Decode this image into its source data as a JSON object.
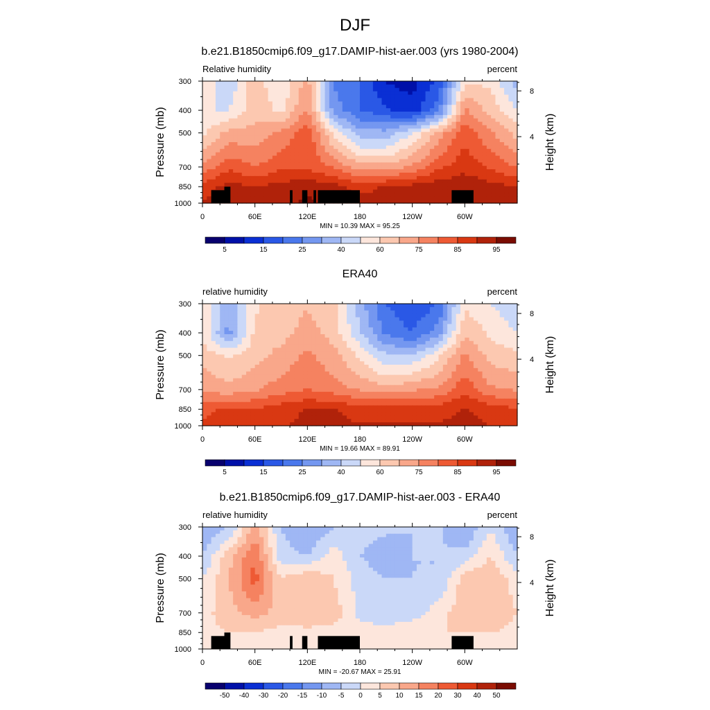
{
  "figure": {
    "title": "DJF"
  },
  "colors": {
    "abs_levels": [
      "5",
      "15",
      "25",
      "40",
      "60",
      "75",
      "85",
      "95"
    ],
    "diff_levels": [
      "-50",
      "-40",
      "-30",
      "-20",
      "-15",
      "-10",
      "-5",
      "0",
      "5",
      "10",
      "15",
      "20",
      "30",
      "40",
      "50"
    ],
    "palette": [
      "#08006e",
      "#0010a8",
      "#0a2fd4",
      "#2a58e6",
      "#4a78ec",
      "#7497f0",
      "#9fb7f4",
      "#cad8f8",
      "#fde6dc",
      "#fcc8b0",
      "#f9a78a",
      "#f58260",
      "#ee5a34",
      "#d93812",
      "#b0220a",
      "#7a0c02"
    ],
    "land": "#000000"
  },
  "panels": [
    {
      "title": "b.e21.B1850cmip6.f09_g17.DAMIP-hist-aer.003 (yrs 1980-2004)",
      "left_label": "Relative humidity",
      "right_label": "percent",
      "ylabel": "Pressure (mb)",
      "y2label": "Height (km)",
      "minmax": "MIN =  10.39  MAX =  95.25",
      "colorbar_labels": [
        "5",
        "15",
        "25",
        "40",
        "60",
        "75",
        "85",
        "95"
      ],
      "show_land": true
    },
    {
      "title": "ERA40",
      "left_label": "relative humidity",
      "right_label": "percent",
      "ylabel": "Pressure (mb)",
      "y2label": "Height (km)",
      "minmax": "MIN =  19.66  MAX =  89.91",
      "colorbar_labels": [
        "5",
        "15",
        "25",
        "40",
        "60",
        "75",
        "85",
        "95"
      ],
      "show_land": false
    },
    {
      "title": "b.e21.B1850cmip6.f09_g17.DAMIP-hist-aer.003 - ERA40",
      "left_label": "relative humidity",
      "right_label": "percent",
      "ylabel": "Pressure (mb)",
      "y2label": "Height (km)",
      "minmax": "MIN = -20.67  MAX =  25.91",
      "colorbar_labels": [
        "-50",
        "-40",
        "-30",
        "-20",
        "-15",
        "-10",
        "-5",
        "0",
        "5",
        "10",
        "15",
        "20",
        "30",
        "40",
        "50"
      ],
      "show_land": true
    }
  ],
  "chart_data": [
    {
      "type": "heatmap",
      "title": "b.e21.B1850cmip6.f09_g17.DAMIP-hist-aer.003 (yrs 1980-2004)",
      "variable": "Relative humidity",
      "units": "percent",
      "x": [
        0,
        30,
        60,
        90,
        120,
        150,
        180,
        210,
        240,
        270,
        300,
        330,
        360
      ],
      "x_ticks": [
        "0",
        "60E",
        "120E",
        "180",
        "120W",
        "60W"
      ],
      "y": [
        300,
        400,
        500,
        700,
        850,
        1000
      ],
      "y_ticks": [
        "300",
        "400",
        "500",
        "700",
        "850",
        "1000"
      ],
      "y2_ticks": [
        "8",
        "4"
      ],
      "z": [
        [
          55,
          45,
          60,
          50,
          65,
          30,
          25,
          12,
          10,
          20,
          55,
          55,
          40
        ],
        [
          50,
          50,
          60,
          55,
          70,
          35,
          25,
          20,
          15,
          30,
          70,
          60,
          50
        ],
        [
          55,
          65,
          65,
          70,
          80,
          55,
          40,
          40,
          50,
          65,
          80,
          70,
          60
        ],
        [
          70,
          80,
          75,
          80,
          80,
          75,
          65,
          65,
          70,
          80,
          85,
          80,
          75
        ],
        [
          85,
          90,
          88,
          90,
          92,
          90,
          85,
          88,
          90,
          92,
          93,
          90,
          88
        ],
        [
          88,
          90,
          90,
          92,
          95,
          92,
          90,
          92,
          93,
          93,
          93,
          92,
          90
        ]
      ],
      "land": [
        [
          10,
          30,
          1000,
          880
        ],
        [
          25,
          32,
          1000,
          850
        ],
        [
          100,
          103,
          1000,
          880
        ],
        [
          114,
          120,
          1000,
          880
        ],
        [
          127,
          130,
          1000,
          880
        ],
        [
          132,
          180,
          1000,
          880
        ],
        [
          285,
          310,
          1000,
          880
        ]
      ]
    },
    {
      "type": "heatmap",
      "title": "ERA40",
      "variable": "relative humidity",
      "units": "percent",
      "x": [
        0,
        30,
        60,
        90,
        120,
        150,
        180,
        210,
        240,
        270,
        300,
        330,
        360
      ],
      "x_ticks": [
        "0",
        "60E",
        "120E",
        "180",
        "120W",
        "60W"
      ],
      "y": [
        300,
        400,
        500,
        700,
        850,
        1000
      ],
      "y_ticks": [
        "300",
        "400",
        "500",
        "700",
        "850",
        "1000"
      ],
      "y2_ticks": [
        "8",
        "4"
      ],
      "z": [
        [
          55,
          40,
          55,
          60,
          62,
          58,
          40,
          25,
          20,
          25,
          55,
          50,
          45
        ],
        [
          55,
          35,
          58,
          60,
          65,
          60,
          45,
          30,
          25,
          35,
          62,
          55,
          50
        ],
        [
          60,
          55,
          60,
          65,
          70,
          65,
          55,
          45,
          45,
          55,
          70,
          60,
          58
        ],
        [
          68,
          65,
          68,
          72,
          75,
          72,
          68,
          65,
          68,
          70,
          80,
          70,
          68
        ],
        [
          80,
          82,
          82,
          85,
          88,
          88,
          85,
          85,
          85,
          85,
          88,
          85,
          82
        ],
        [
          82,
          85,
          85,
          87,
          89,
          89,
          88,
          88,
          88,
          88,
          90,
          87,
          85
        ]
      ]
    },
    {
      "type": "heatmap",
      "title": "b.e21.B1850cmip6.f09_g17.DAMIP-hist-aer.003 - ERA40",
      "variable": "relative humidity",
      "units": "percent",
      "x": [
        0,
        30,
        60,
        90,
        120,
        150,
        180,
        210,
        240,
        270,
        300,
        330,
        360
      ],
      "x_ticks": [
        "0",
        "60E",
        "120E",
        "180",
        "120W",
        "60W"
      ],
      "y": [
        300,
        400,
        500,
        700,
        850,
        1000
      ],
      "y_ticks": [
        "300",
        "400",
        "500",
        "700",
        "850",
        "1000"
      ],
      "y2_ticks": [
        "8",
        "4"
      ],
      "z": [
        [
          -10,
          -5,
          12,
          -5,
          -10,
          -5,
          -3,
          -4,
          -5,
          -4,
          -10,
          0,
          -10
        ],
        [
          -5,
          8,
          20,
          -3,
          -5,
          3,
          -5,
          -8,
          -5,
          -5,
          -3,
          5,
          -5
        ],
        [
          0,
          10,
          22,
          5,
          10,
          5,
          -2,
          -5,
          -5,
          -5,
          8,
          10,
          2
        ],
        [
          3,
          8,
          12,
          8,
          10,
          8,
          -2,
          -5,
          -3,
          3,
          8,
          10,
          5
        ],
        [
          3,
          5,
          5,
          3,
          3,
          3,
          3,
          3,
          5,
          5,
          5,
          5,
          3
        ],
        [
          3,
          3,
          3,
          3,
          3,
          3,
          5,
          5,
          3,
          3,
          3,
          3,
          3
        ]
      ],
      "land": [
        [
          10,
          30,
          1000,
          880
        ],
        [
          25,
          32,
          1000,
          850
        ],
        [
          100,
          103,
          1000,
          880
        ],
        [
          114,
          120,
          1000,
          880
        ],
        [
          132,
          180,
          1000,
          880
        ],
        [
          285,
          310,
          1000,
          880
        ]
      ]
    }
  ]
}
